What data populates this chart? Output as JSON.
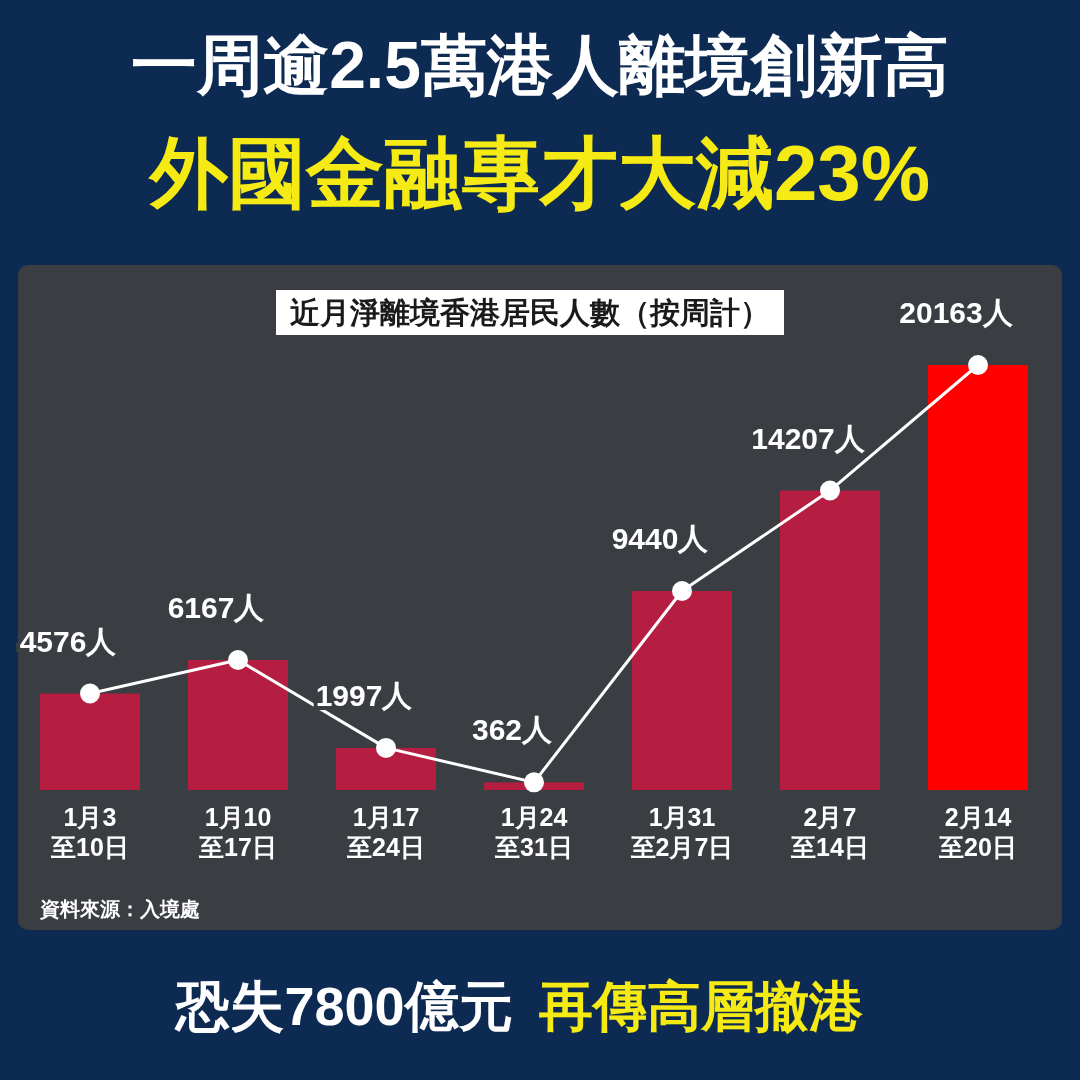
{
  "chart_data": {
    "type": "bar",
    "title": "一周逾2.5萬港人離境創新高",
    "subtitle": "外國金融專才大減23%",
    "categories": [
      "1月3\n至10日",
      "1月10\n至17日",
      "1月17\n至24日",
      "1月24\n至31日",
      "1月31\n至2月7日",
      "2月7\n至14日",
      "2月14\n至20日"
    ],
    "series": [
      {
        "colors": [
          "#b51d41",
          "#b51d41",
          "#b51d41",
          "#b51d41",
          "#b51d41",
          "#b51d41",
          "#ff0000"
        ],
        "values": [
          4576,
          6167,
          1997,
          362,
          9440,
          14207,
          20163
        ],
        "value_labels": [
          "4576人",
          "6167人",
          "1997人",
          "362人",
          "9440人",
          "14207人",
          "20163人"
        ]
      },
      {
        "type": "line",
        "color": "#ffffff",
        "marker": "circle",
        "values": [
          4576,
          6167,
          1997,
          362,
          9440,
          14207,
          20163
        ]
      }
    ],
    "annotations": [
      "近月淨離境香港居民人數（按周計）",
      "資料來源：入境處",
      "恐失7800億元",
      "再傳高層撤港"
    ]
  }
}
